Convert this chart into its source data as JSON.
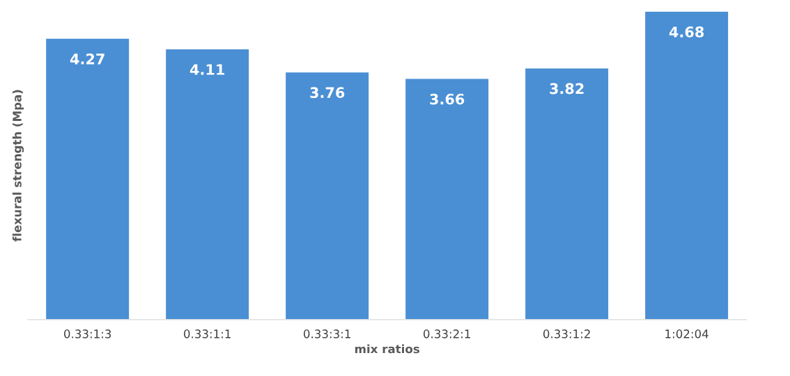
{
  "chart_data": {
    "type": "bar",
    "xlabel": "mix ratios",
    "ylabel": "flexural strength (Mpa)",
    "categories": [
      "0.33:1:3",
      "0.33:1:1",
      "0.33:3:1",
      "0.33:2:1",
      "0.33:1:2",
      "1:02:04"
    ],
    "values": [
      4.27,
      4.11,
      3.76,
      3.66,
      3.82,
      4.68
    ],
    "color": "#4a8fd4",
    "data_labels": true,
    "tick_labels": "x",
    "grid": false,
    "legend": false
  }
}
